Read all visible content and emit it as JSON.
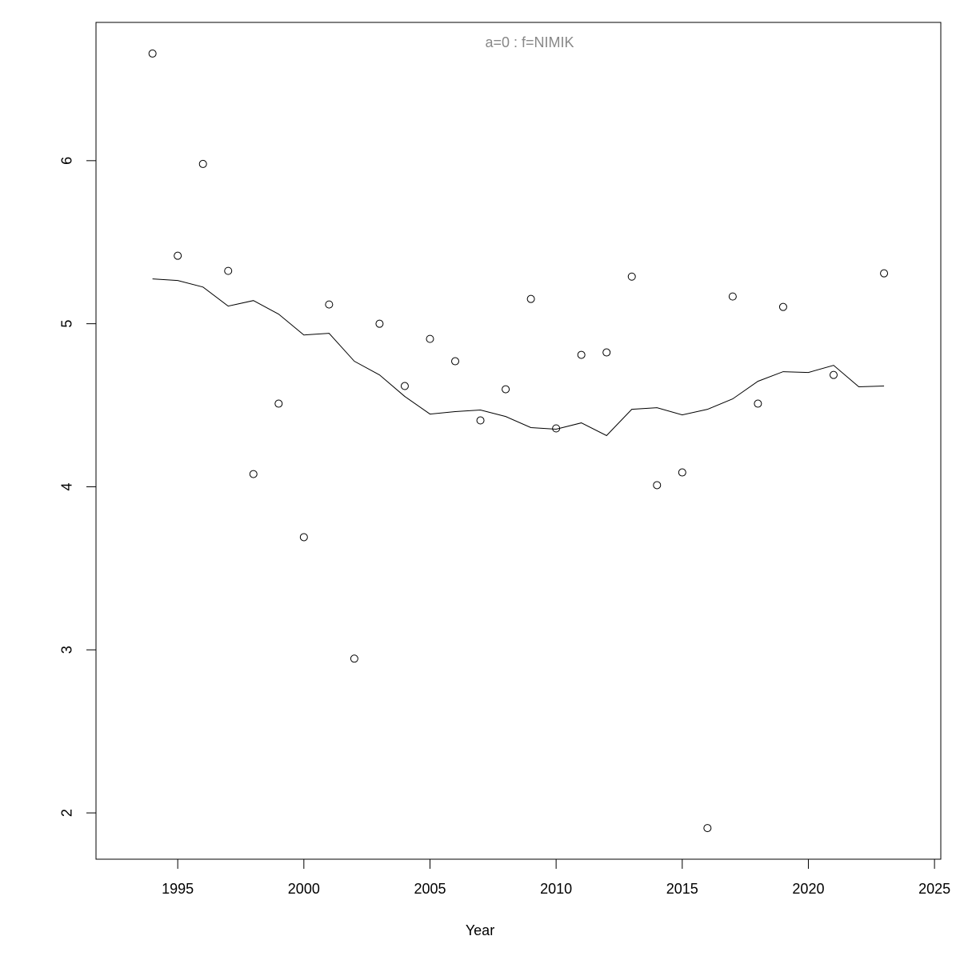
{
  "chart_data": {
    "type": "scatter",
    "title": "a=0  :  f=NIMIK",
    "title_color": "#888888",
    "x_label": "Year",
    "x": [
      1994,
      1995,
      1996,
      1997,
      1998,
      1999,
      2000,
      2001,
      2002,
      2003,
      2004,
      2005,
      2006,
      2007,
      2008,
      2009,
      2010,
      2011,
      2012,
      2013,
      2014,
      2015,
      2016,
      2017,
      2018,
      2019,
      2020,
      2021,
      2022,
      2023
    ],
    "series": [
      {
        "mode": "points",
        "color": "#000000",
        "values": [
          6.657,
          5.417,
          5.98,
          5.324,
          4.078,
          4.51,
          3.691,
          5.118,
          2.946,
          5.0,
          4.618,
          4.907,
          4.77,
          4.407,
          4.598,
          5.152,
          4.358,
          4.809,
          4.824,
          5.289,
          4.01,
          4.088,
          1.907,
          5.167,
          4.51,
          5.103,
          null,
          4.686,
          null,
          5.309
        ]
      },
      {
        "mode": "line",
        "color": "#000000",
        "values": [
          5.275,
          5.265,
          5.225,
          5.108,
          5.142,
          5.059,
          4.931,
          4.941,
          4.77,
          4.686,
          4.554,
          4.446,
          4.461,
          4.471,
          4.431,
          4.363,
          4.353,
          4.392,
          4.314,
          4.475,
          4.485,
          4.441,
          4.475,
          4.539,
          4.647,
          4.706,
          4.701,
          4.745,
          4.613,
          4.618
        ]
      }
    ],
    "xlim": [
      1991.76,
      2025.25
    ],
    "ylim": [
      1.716,
      6.848
    ],
    "xticks": [
      1995,
      2000,
      2005,
      2010,
      2015,
      2020,
      2025
    ],
    "yticks": [
      2,
      3,
      4,
      5,
      6
    ]
  }
}
